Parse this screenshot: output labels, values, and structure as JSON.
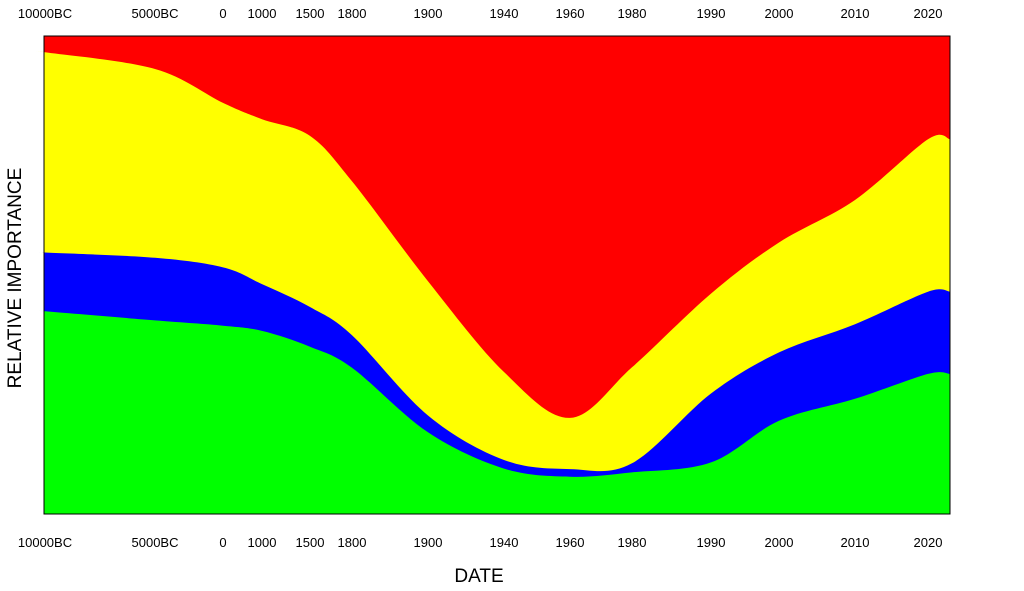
{
  "chart_data": {
    "type": "area",
    "title": "",
    "xlabel": "DATE",
    "ylabel": "RELATIVE IMPORTANCE",
    "grid": false,
    "legend": "none",
    "stacking": "cumulative, layers from bottom to top",
    "x": [
      "10000BC",
      "5000BC",
      "0",
      "1000",
      "1500",
      "1800",
      "1900",
      "1940",
      "1960",
      "1980",
      "1990",
      "2000",
      "2010",
      "2020"
    ],
    "x_tick_labels_top": [
      "10000BC",
      "5000BC",
      "0",
      "1000",
      "1500",
      "1800",
      "1900",
      "1940",
      "1960",
      "1980",
      "1990",
      "2000",
      "2010",
      "2020"
    ],
    "x_tick_labels_bottom": [
      "10000BC",
      "5000BC",
      "0",
      "1000",
      "1500",
      "1800",
      "1900",
      "1940",
      "1960",
      "1980",
      "1990",
      "2000",
      "2010",
      "2020"
    ],
    "ylim": [
      0,
      100
    ],
    "series": [
      {
        "color": "#00ff00",
        "cumulative_top": [
          42.4,
          40.5,
          39.4,
          38.3,
          35.0,
          30.6,
          17.1,
          9.5,
          7.8,
          8.7,
          10.8,
          19.5,
          24.1,
          29.3
        ]
      },
      {
        "color": "#0000ff",
        "cumulative_top": [
          54.7,
          53.6,
          51.6,
          48.1,
          43.3,
          37.4,
          20.6,
          11.3,
          9.4,
          10.6,
          25.2,
          33.8,
          39.7,
          46.5
        ]
      },
      {
        "color": "#ffff00",
        "cumulative_top": [
          96.6,
          93.1,
          86.0,
          82.6,
          79.1,
          69.6,
          48.7,
          29.7,
          20.1,
          30.7,
          46.1,
          56.8,
          65.7,
          78.4
        ]
      },
      {
        "color": "#ff0000",
        "cumulative_top": [
          100,
          100,
          100,
          100,
          100,
          100,
          100,
          100,
          100,
          100,
          100,
          100,
          100,
          100
        ]
      }
    ]
  }
}
